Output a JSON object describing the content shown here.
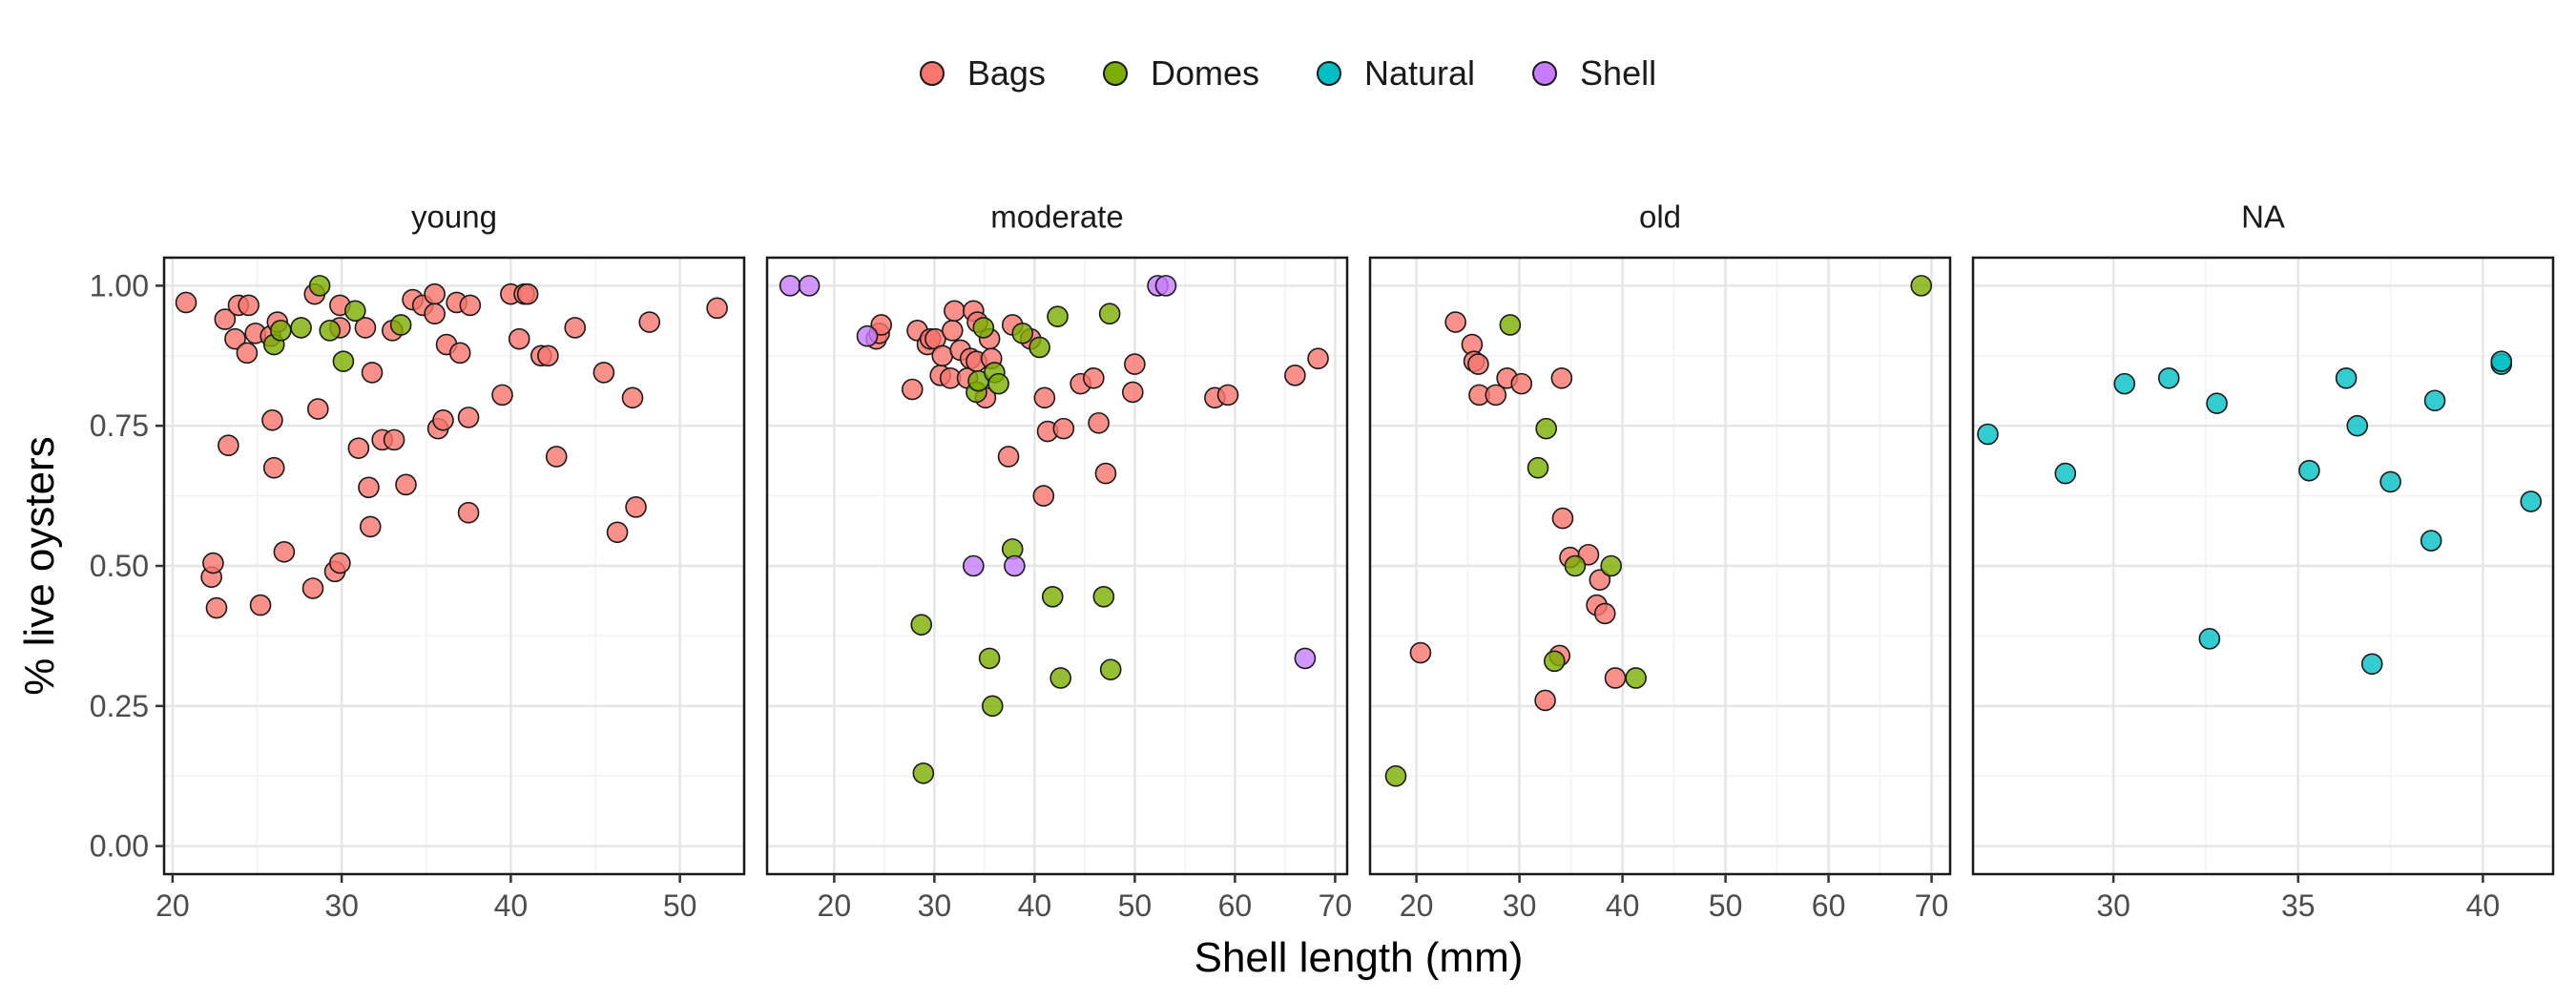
{
  "chart_data": {
    "type": "scatter",
    "xlabel": "Shell length (mm)",
    "ylabel": "% live oysters",
    "ylim": [
      -0.05,
      1.05
    ],
    "yticks": [
      0.0,
      0.25,
      0.5,
      0.75,
      1.0
    ],
    "ytick_labels": [
      "0.00",
      "0.25",
      "0.50",
      "0.75",
      "1.00"
    ],
    "legend": {
      "position": "top",
      "entries": [
        {
          "name": "Bags",
          "color": "#F8766D"
        },
        {
          "name": "Domes",
          "color": "#7CAE00"
        },
        {
          "name": "Natural",
          "color": "#00BFC4"
        },
        {
          "name": "Shell",
          "color": "#C77CFF"
        }
      ]
    },
    "panels": [
      {
        "title": "young",
        "xlim": [
          19.5,
          53.8
        ],
        "xticks": [
          20,
          30,
          40,
          50
        ],
        "series": [
          {
            "name": "Bags",
            "points": [
              [
                20.8,
                0.97
              ],
              [
                22.3,
                0.48
              ],
              [
                22.4,
                0.505
              ],
              [
                22.6,
                0.425
              ],
              [
                23.1,
                0.94
              ],
              [
                23.3,
                0.715
              ],
              [
                23.7,
                0.905
              ],
              [
                23.9,
                0.965
              ],
              [
                24.4,
                0.88
              ],
              [
                24.5,
                0.965
              ],
              [
                24.9,
                0.915
              ],
              [
                25.2,
                0.43
              ],
              [
                25.8,
                0.91
              ],
              [
                25.9,
                0.76
              ],
              [
                26.0,
                0.675
              ],
              [
                26.2,
                0.935
              ],
              [
                26.6,
                0.525
              ],
              [
                28.3,
                0.46
              ],
              [
                28.4,
                0.985
              ],
              [
                28.6,
                0.78
              ],
              [
                29.6,
                0.49
              ],
              [
                29.9,
                0.505
              ],
              [
                29.9,
                0.925
              ],
              [
                29.9,
                0.965
              ],
              [
                31.0,
                0.71
              ],
              [
                31.4,
                0.925
              ],
              [
                31.6,
                0.64
              ],
              [
                31.7,
                0.57
              ],
              [
                31.8,
                0.845
              ],
              [
                32.4,
                0.725
              ],
              [
                33.0,
                0.92
              ],
              [
                33.1,
                0.725
              ],
              [
                33.8,
                0.645
              ],
              [
                34.2,
                0.975
              ],
              [
                34.8,
                0.965
              ],
              [
                35.5,
                0.985
              ],
              [
                35.5,
                0.95
              ],
              [
                35.7,
                0.745
              ],
              [
                36.0,
                0.76
              ],
              [
                36.2,
                0.895
              ],
              [
                36.8,
                0.97
              ],
              [
                37.0,
                0.88
              ],
              [
                37.5,
                0.595
              ],
              [
                37.5,
                0.765
              ],
              [
                37.6,
                0.965
              ],
              [
                39.5,
                0.805
              ],
              [
                40.0,
                0.985
              ],
              [
                40.5,
                0.905
              ],
              [
                40.8,
                0.985
              ],
              [
                41.0,
                0.985
              ],
              [
                41.8,
                0.875
              ],
              [
                42.2,
                0.875
              ],
              [
                42.7,
                0.695
              ],
              [
                43.8,
                0.925
              ],
              [
                45.5,
                0.845
              ],
              [
                46.3,
                0.56
              ],
              [
                47.2,
                0.8
              ],
              [
                47.4,
                0.605
              ],
              [
                48.2,
                0.935
              ],
              [
                52.2,
                0.96
              ]
            ]
          },
          {
            "name": "Domes",
            "points": [
              [
                26.0,
                0.895
              ],
              [
                26.4,
                0.92
              ],
              [
                27.6,
                0.925
              ],
              [
                28.7,
                1.0
              ],
              [
                29.3,
                0.92
              ],
              [
                30.1,
                0.865
              ],
              [
                30.8,
                0.955
              ],
              [
                33.5,
                0.93
              ]
            ]
          }
        ]
      },
      {
        "title": "moderate",
        "xlim": [
          13.3,
          71.2
        ],
        "xticks": [
          20,
          30,
          40,
          50,
          60,
          70
        ],
        "series": [
          {
            "name": "Bags",
            "points": [
              [
                24.2,
                0.905
              ],
              [
                24.5,
                0.915
              ],
              [
                24.7,
                0.93
              ],
              [
                27.8,
                0.815
              ],
              [
                28.3,
                0.92
              ],
              [
                29.3,
                0.895
              ],
              [
                29.6,
                0.905
              ],
              [
                30.1,
                0.905
              ],
              [
                30.6,
                0.84
              ],
              [
                30.8,
                0.875
              ],
              [
                31.6,
                0.835
              ],
              [
                31.8,
                0.92
              ],
              [
                32.0,
                0.955
              ],
              [
                32.6,
                0.885
              ],
              [
                33.3,
                0.835
              ],
              [
                33.6,
                0.87
              ],
              [
                33.9,
                0.955
              ],
              [
                34.2,
                0.865
              ],
              [
                34.3,
                0.935
              ],
              [
                35.1,
                0.8
              ],
              [
                35.5,
                0.905
              ],
              [
                35.7,
                0.87
              ],
              [
                37.4,
                0.695
              ],
              [
                37.8,
                0.93
              ],
              [
                39.6,
                0.905
              ],
              [
                40.9,
                0.625
              ],
              [
                41.0,
                0.8
              ],
              [
                41.3,
                0.74
              ],
              [
                42.9,
                0.745
              ],
              [
                44.6,
                0.825
              ],
              [
                45.9,
                0.835
              ],
              [
                46.4,
                0.755
              ],
              [
                47.1,
                0.665
              ],
              [
                49.8,
                0.81
              ],
              [
                50.0,
                0.86
              ],
              [
                58.0,
                0.8
              ],
              [
                59.3,
                0.805
              ],
              [
                66.0,
                0.84
              ],
              [
                68.3,
                0.87
              ]
            ]
          },
          {
            "name": "Domes",
            "points": [
              [
                28.7,
                0.395
              ],
              [
                28.9,
                0.13
              ],
              [
                34.2,
                0.81
              ],
              [
                34.4,
                0.83
              ],
              [
                34.9,
                0.925
              ],
              [
                35.5,
                0.335
              ],
              [
                35.8,
                0.25
              ],
              [
                36.0,
                0.845
              ],
              [
                36.4,
                0.825
              ],
              [
                37.8,
                0.53
              ],
              [
                38.8,
                0.915
              ],
              [
                40.5,
                0.89
              ],
              [
                41.8,
                0.445
              ],
              [
                42.3,
                0.945
              ],
              [
                42.6,
                0.3
              ],
              [
                46.9,
                0.445
              ],
              [
                47.5,
                0.95
              ],
              [
                47.6,
                0.315
              ]
            ]
          },
          {
            "name": "Shell",
            "points": [
              [
                15.6,
                1.0
              ],
              [
                17.5,
                1.0
              ],
              [
                23.3,
                0.91
              ],
              [
                33.9,
                0.5
              ],
              [
                38.0,
                0.5
              ],
              [
                52.3,
                1.0
              ],
              [
                53.1,
                1.0
              ],
              [
                67.0,
                0.335
              ]
            ]
          }
        ]
      },
      {
        "title": "old",
        "xlim": [
          15.5,
          71.8
        ],
        "xticks": [
          20,
          30,
          40,
          50,
          60,
          70
        ],
        "series": [
          {
            "name": "Bags",
            "points": [
              [
                20.4,
                0.345
              ],
              [
                23.8,
                0.935
              ],
              [
                25.4,
                0.895
              ],
              [
                25.6,
                0.865
              ],
              [
                26.0,
                0.86
              ],
              [
                26.1,
                0.805
              ],
              [
                27.7,
                0.805
              ],
              [
                28.8,
                0.835
              ],
              [
                30.2,
                0.825
              ],
              [
                32.5,
                0.26
              ],
              [
                33.9,
                0.34
              ],
              [
                34.1,
                0.835
              ],
              [
                34.2,
                0.585
              ],
              [
                34.9,
                0.515
              ],
              [
                36.7,
                0.52
              ],
              [
                37.5,
                0.43
              ],
              [
                37.8,
                0.475
              ],
              [
                38.3,
                0.415
              ],
              [
                39.3,
                0.3
              ]
            ]
          },
          {
            "name": "Domes",
            "points": [
              [
                18.0,
                0.125
              ],
              [
                29.1,
                0.93
              ],
              [
                31.8,
                0.675
              ],
              [
                32.6,
                0.745
              ],
              [
                33.4,
                0.33
              ],
              [
                35.4,
                0.5
              ],
              [
                38.9,
                0.5
              ],
              [
                41.3,
                0.3
              ],
              [
                69.0,
                1.0
              ]
            ]
          }
        ]
      },
      {
        "title": "NA",
        "xlim": [
          26.2,
          41.9
        ],
        "xticks": [
          30,
          35,
          40
        ],
        "series": [
          {
            "name": "Natural",
            "points": [
              [
                26.6,
                0.735
              ],
              [
                28.7,
                0.665
              ],
              [
                30.3,
                0.825
              ],
              [
                31.5,
                0.835
              ],
              [
                32.6,
                0.37
              ],
              [
                32.8,
                0.79
              ],
              [
                35.3,
                0.67
              ],
              [
                36.3,
                0.835
              ],
              [
                36.6,
                0.75
              ],
              [
                37.0,
                0.325
              ],
              [
                37.5,
                0.65
              ],
              [
                38.6,
                0.545
              ],
              [
                38.7,
                0.795
              ],
              [
                40.5,
                0.86
              ],
              [
                40.5,
                0.865
              ],
              [
                41.3,
                0.615
              ]
            ]
          }
        ]
      }
    ]
  }
}
